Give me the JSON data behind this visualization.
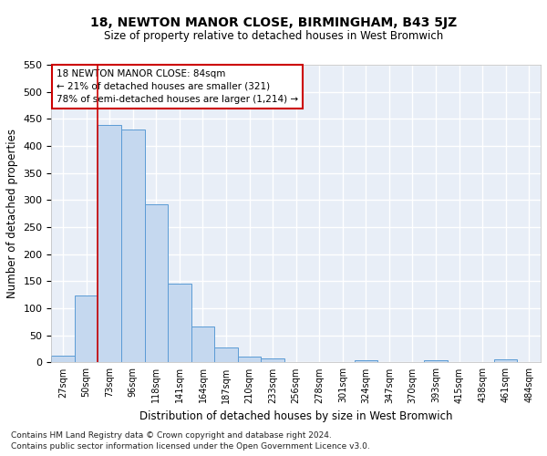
{
  "title": "18, NEWTON MANOR CLOSE, BIRMINGHAM, B43 5JZ",
  "subtitle": "Size of property relative to detached houses in West Bromwich",
  "xlabel": "Distribution of detached houses by size in West Bromwich",
  "ylabel": "Number of detached properties",
  "footnote1": "Contains HM Land Registry data © Crown copyright and database right 2024.",
  "footnote2": "Contains public sector information licensed under the Open Government Licence v3.0.",
  "annotation_line1": "18 NEWTON MANOR CLOSE: 84sqm",
  "annotation_line2": "← 21% of detached houses are smaller (321)",
  "annotation_line3": "78% of semi-detached houses are larger (1,214) →",
  "bar_color": "#c5d8ef",
  "bar_edge_color": "#5b9bd5",
  "vline_color": "#cc0000",
  "bg_color": "#e8eef7",
  "grid_color": "#ffffff",
  "categories": [
    "27sqm",
    "50sqm",
    "73sqm",
    "96sqm",
    "118sqm",
    "141sqm",
    "164sqm",
    "187sqm",
    "210sqm",
    "233sqm",
    "256sqm",
    "278sqm",
    "301sqm",
    "324sqm",
    "347sqm",
    "370sqm",
    "393sqm",
    "415sqm",
    "438sqm",
    "461sqm",
    "484sqm"
  ],
  "values": [
    13,
    124,
    438,
    430,
    292,
    146,
    67,
    27,
    11,
    8,
    0,
    0,
    0,
    5,
    0,
    0,
    5,
    0,
    0,
    6,
    0
  ],
  "ylim": [
    0,
    550
  ],
  "yticks": [
    0,
    50,
    100,
    150,
    200,
    250,
    300,
    350,
    400,
    450,
    500,
    550
  ],
  "vline_x_index": 1.5,
  "title_fontsize": 10,
  "subtitle_fontsize": 9
}
